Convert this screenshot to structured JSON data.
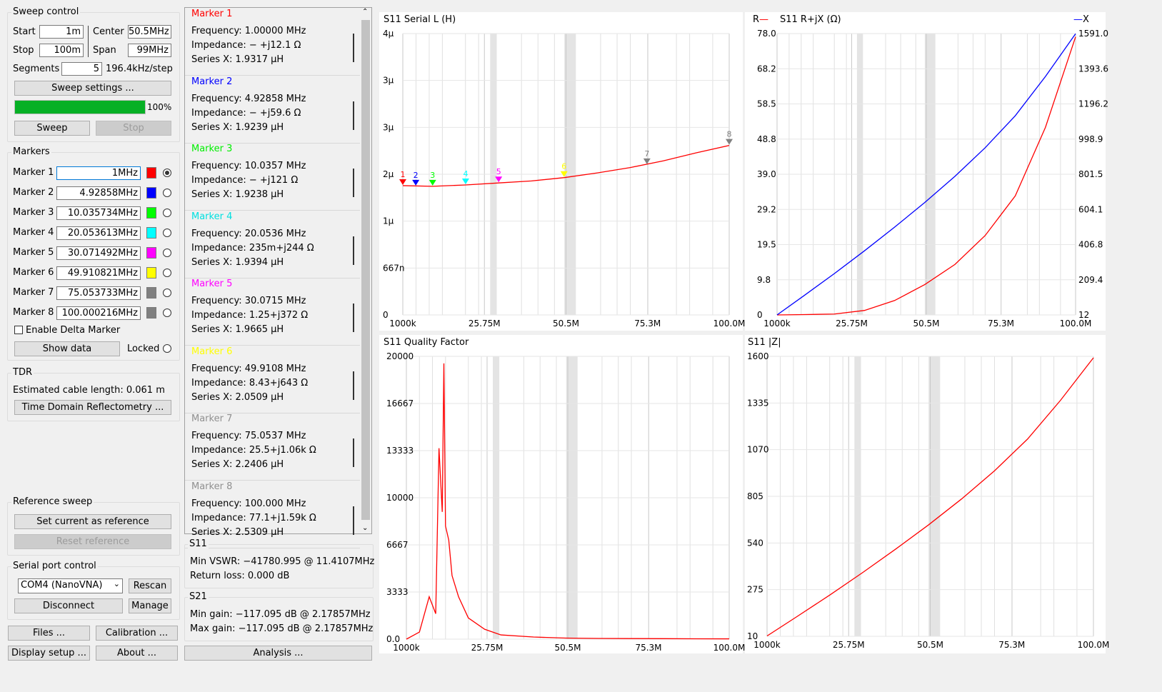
{
  "sweep_control": {
    "title": "Sweep control",
    "start_label": "Start",
    "start_value": "1m",
    "center_label": "Center",
    "center_value": "50.5MHz",
    "stop_label": "Stop",
    "stop_value": "100m",
    "span_label": "Span",
    "span_value": "99MHz",
    "segments_label": "Segments",
    "segments_value": "5",
    "step_text": "196.4kHz/step",
    "sweep_settings_button": "Sweep settings ...",
    "progress_percent": 100,
    "progress_text": "100%",
    "sweep_button": "Sweep",
    "stop_button": "Stop"
  },
  "markers_panel": {
    "title": "Markers",
    "markers": [
      {
        "label": "Marker 1",
        "freq": "1MHz",
        "color": "#ff0000",
        "selected": true
      },
      {
        "label": "Marker 2",
        "freq": "4.92858MHz",
        "color": "#0000ff",
        "selected": false
      },
      {
        "label": "Marker 3",
        "freq": "10.035734MHz",
        "color": "#00ff00",
        "selected": false
      },
      {
        "label": "Marker 4",
        "freq": "20.053613MHz",
        "color": "#00ffff",
        "selected": false
      },
      {
        "label": "Marker 5",
        "freq": "30.071492MHz",
        "color": "#ff00ff",
        "selected": false
      },
      {
        "label": "Marker 6",
        "freq": "49.910821MHz",
        "color": "#ffff00",
        "selected": false
      },
      {
        "label": "Marker 7",
        "freq": "75.053733MHz",
        "color": "#808080",
        "selected": false
      },
      {
        "label": "Marker 8",
        "freq": "100.000216MHz",
        "color": "#808080",
        "selected": false
      }
    ],
    "enable_delta": "Enable Delta Marker",
    "show_data_button": "Show data",
    "locked_label": "Locked"
  },
  "tdr": {
    "title": "TDR",
    "cable_length": "Estimated cable length: 0.061 m",
    "button": "Time Domain Reflectometry ..."
  },
  "reference_sweep": {
    "title": "Reference sweep",
    "set_button": "Set current as reference",
    "reset_button": "Reset reference"
  },
  "serial": {
    "title": "Serial port control",
    "port": "COM4 (NanoVNA)",
    "rescan_button": "Rescan",
    "disconnect_button": "Disconnect",
    "manage_button": "Manage"
  },
  "bottom_buttons": {
    "files": "Files ...",
    "calibration": "Calibration ...",
    "display_setup": "Display setup ...",
    "about": "About ...",
    "analysis": "Analysis ..."
  },
  "marker_details": [
    {
      "title": "Marker 1",
      "color": "#ff0000",
      "frequency": "Frequency:  1.00000 MHz",
      "impedance": "Impedance:  − +j12.1 Ω",
      "series": "Series X:   1.9317 μH"
    },
    {
      "title": "Marker 2",
      "color": "#0000ff",
      "frequency": "Frequency:  4.92858 MHz",
      "impedance": "Impedance:  − +j59.6 Ω",
      "series": "Series X:   1.9239 μH"
    },
    {
      "title": "Marker 3",
      "color": "#00ee00",
      "frequency": "Frequency:  10.0357 MHz",
      "impedance": "Impedance:  − +j121 Ω",
      "series": "Series X:   1.9238 μH"
    },
    {
      "title": "Marker 4",
      "color": "#00e0e0",
      "frequency": "Frequency:  20.0536 MHz",
      "impedance": "Impedance:  235m+j244 Ω",
      "series": "Series X:   1.9394 μH"
    },
    {
      "title": "Marker 5",
      "color": "#ff00ff",
      "frequency": "Frequency:  30.0715 MHz",
      "impedance": "Impedance:  1.25+j372 Ω",
      "series": "Series X:   1.9665 μH"
    },
    {
      "title": "Marker 6",
      "color": "#ffff00",
      "frequency": "Frequency:  49.9108 MHz",
      "impedance": "Impedance:  8.43+j643 Ω",
      "series": "Series X:   2.0509 μH"
    },
    {
      "title": "Marker 7",
      "color": "#909090",
      "frequency": "Frequency:  75.0537 MHz",
      "impedance": "Impedance:  25.5+j1.06k Ω",
      "series": "Series X:   2.2406 μH"
    },
    {
      "title": "Marker 8",
      "color": "#909090",
      "frequency": "Frequency:  100.000 MHz",
      "impedance": "Impedance:  77.1+j1.59k Ω",
      "series": "Series X:   2.5309 μH"
    }
  ],
  "s11_summary": {
    "title": "S11",
    "min_vswr": "Min VSWR:   −41780.995 @ 11.4107MHz",
    "return_loss": "Return loss:  0.000 dB"
  },
  "s21_summary": {
    "title": "S21",
    "min_gain": "Min gain:  −117.095 dB @ 2.17857MHz",
    "max_gain": "Max gain:  −117.095 dB @ 2.17857MHz"
  },
  "chart_data": [
    {
      "type": "line",
      "title": "S11 Serial L (H)",
      "x_ticks": [
        "1000k",
        "25.75M",
        "50.5M",
        "75.3M",
        "100.0M"
      ],
      "y_ticks": [
        "0",
        "667n",
        "1μ",
        "2μ",
        "3μ",
        "3μ",
        "4μ"
      ],
      "series": [
        {
          "color": "#ff0000",
          "x": [
            1,
            10,
            20,
            30,
            40,
            50,
            60,
            70,
            80,
            90,
            100
          ],
          "y": [
            1.93,
            1.92,
            1.94,
            1.97,
            2.0,
            2.05,
            2.12,
            2.2,
            2.3,
            2.42,
            2.53
          ]
        }
      ],
      "ylim": [
        0,
        4.2
      ],
      "xlim": [
        1,
        100
      ],
      "markers": [
        {
          "n": "1",
          "x": 1,
          "y": 1.93
        },
        {
          "n": "2",
          "x": 4.93,
          "y": 1.92
        },
        {
          "n": "3",
          "x": 10.04,
          "y": 1.92
        },
        {
          "n": "4",
          "x": 20.05,
          "y": 1.94
        },
        {
          "n": "5",
          "x": 30.07,
          "y": 1.97
        },
        {
          "n": "6",
          "x": 49.91,
          "y": 2.05
        },
        {
          "n": "7",
          "x": 75.05,
          "y": 2.24
        },
        {
          "n": "8",
          "x": 100,
          "y": 2.53
        }
      ]
    },
    {
      "type": "line",
      "title": "S11 R+jX (Ω)",
      "left_legend": "R",
      "right_legend": "X",
      "x_ticks": [
        "1000k",
        "25.75M",
        "50.5M",
        "75.3M",
        "100.0M"
      ],
      "y_ticks_left": [
        "0",
        "9.8",
        "19.5",
        "29.2",
        "39.0",
        "48.8",
        "58.5",
        "68.2",
        "78.0"
      ],
      "y_ticks_right": [
        "12",
        "209.4",
        "406.8",
        "604.1",
        "801.5",
        "998.9",
        "1196.2",
        "1393.6",
        "1591.0"
      ],
      "series": [
        {
          "name": "R",
          "color": "#ff0000",
          "x": [
            1,
            10,
            20,
            30,
            40,
            50,
            60,
            70,
            80,
            90,
            100
          ],
          "y": [
            0.0,
            0.1,
            0.25,
            1.25,
            4.0,
            8.43,
            14.0,
            22.0,
            33.0,
            52.0,
            77.1
          ]
        },
        {
          "name": "X",
          "color": "#0000ff",
          "x": [
            1,
            10,
            20,
            30,
            40,
            50,
            60,
            70,
            80,
            90,
            100
          ],
          "y": [
            12,
            121,
            244,
            372,
            505,
            643,
            790,
            950,
            1130,
            1350,
            1590
          ]
        }
      ],
      "ylim_left": [
        0,
        78.0
      ],
      "ylim_right": [
        12,
        1591.0
      ],
      "xlim": [
        1,
        100
      ]
    },
    {
      "type": "line",
      "title": "S11 Quality Factor",
      "x_ticks": [
        "1000k",
        "25.75M",
        "50.5M",
        "75.3M",
        "100.0M"
      ],
      "y_ticks": [
        "0.0",
        "3333",
        "6667",
        "10000",
        "13333",
        "16667",
        "20000"
      ],
      "series": [
        {
          "color": "#ff0000",
          "x": [
            1,
            5,
            8,
            10,
            11,
            12,
            12.5,
            13,
            14,
            15,
            17,
            20,
            25,
            30,
            40,
            50,
            60,
            70,
            80,
            90,
            100
          ],
          "y": [
            0,
            500,
            3000,
            1800,
            13500,
            9000,
            19500,
            8000,
            7000,
            4500,
            3000,
            1500,
            700,
            300,
            150,
            76,
            50,
            42,
            35,
            25,
            21
          ]
        }
      ],
      "ylim": [
        0,
        20000
      ],
      "xlim": [
        1,
        100
      ]
    },
    {
      "type": "line",
      "title": "S11 |Z|",
      "x_ticks": [
        "1000k",
        "25.75M",
        "50.5M",
        "75.3M",
        "100.0M"
      ],
      "y_ticks": [
        "10",
        "275",
        "540",
        "805",
        "1070",
        "1335",
        "1600"
      ],
      "series": [
        {
          "color": "#ff0000",
          "x": [
            1,
            10,
            20,
            30,
            40,
            50,
            60,
            70,
            80,
            90,
            100
          ],
          "y": [
            12,
            121,
            244,
            372,
            505,
            643,
            790,
            950,
            1130,
            1350,
            1592
          ]
        }
      ],
      "ylim": [
        10,
        1600
      ],
      "xlim": [
        1,
        100
      ]
    }
  ]
}
